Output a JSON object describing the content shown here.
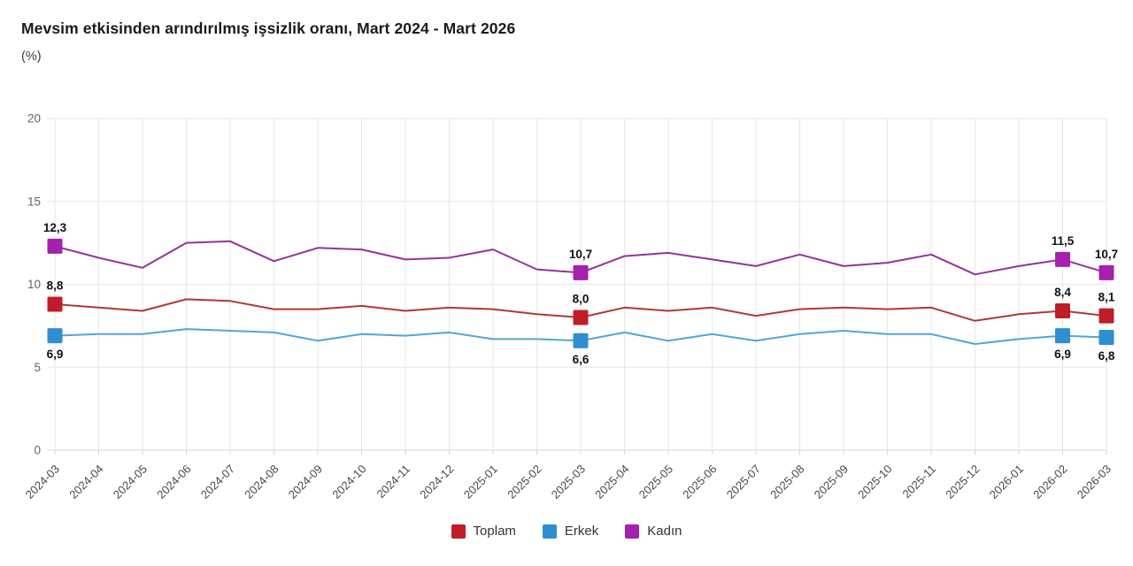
{
  "title": "Mevsim etkisinden arındırılmış işsizlik oranı, Mart 2024 - Mart 2026",
  "subtitle": "(%)",
  "colors": {
    "background": "#ffffff",
    "gridline": "#e7e7e7",
    "axis_line": "#d6d6d6",
    "y_tick_label": "#666666",
    "x_tick_label": "#484848",
    "data_label": "#111111",
    "title": "#1a1a1a",
    "toplam": "#bf1e28",
    "erkek": "#2f8ed0",
    "kadin": "#a521ad"
  },
  "legend": [
    {
      "id": "toplam",
      "label": "Toplam",
      "color": "#bf1e28"
    },
    {
      "id": "erkek",
      "label": "Erkek",
      "color": "#2f8ed0"
    },
    {
      "id": "kadin",
      "label": "Kadın",
      "color": "#a521ad"
    }
  ],
  "chart_data": {
    "type": "line",
    "title": "Mevsim etkisinden arındırılmış işsizlik oranı, Mart 2024 - Mart 2026",
    "ylabel": "(%)",
    "ylim": [
      0,
      20
    ],
    "yticks": [
      0,
      5,
      10,
      15,
      20
    ],
    "grid": true,
    "legend_position": "bottom",
    "x": [
      "2024-03",
      "2024-04",
      "2024-05",
      "2024-06",
      "2024-07",
      "2024-08",
      "2024-09",
      "2024-10",
      "2024-11",
      "2024-12",
      "2025-01",
      "2025-02",
      "2025-03",
      "2025-04",
      "2025-05",
      "2025-06",
      "2025-07",
      "2025-08",
      "2025-09",
      "2025-10",
      "2025-11",
      "2025-12",
      "2026-01",
      "2026-02",
      "2026-03"
    ],
    "series": [
      {
        "name": "Toplam",
        "line_color": "#b13832",
        "marker_color": "#bf1e28",
        "values": [
          8.8,
          8.6,
          8.4,
          9.1,
          9.0,
          8.5,
          8.5,
          8.7,
          8.4,
          8.6,
          8.5,
          8.2,
          8.0,
          8.6,
          8.4,
          8.6,
          8.1,
          8.5,
          8.6,
          8.5,
          8.6,
          7.8,
          8.2,
          8.4,
          8.1
        ],
        "labeled_points": [
          {
            "x": "2024-03",
            "label": "8,8",
            "position": "above"
          },
          {
            "x": "2025-03",
            "label": "8,0",
            "position": "above"
          },
          {
            "x": "2026-02",
            "label": "8,4",
            "position": "above"
          },
          {
            "x": "2026-03",
            "label": "8,1",
            "position": "above"
          }
        ]
      },
      {
        "name": "Erkek",
        "line_color": "#54a4d8",
        "marker_color": "#2f8ed0",
        "values": [
          6.9,
          7.0,
          7.0,
          7.3,
          7.2,
          7.1,
          6.6,
          7.0,
          6.9,
          7.1,
          6.7,
          6.7,
          6.6,
          7.1,
          6.6,
          7.0,
          6.6,
          7.0,
          7.2,
          7.0,
          7.0,
          6.4,
          6.7,
          6.9,
          6.8
        ],
        "labeled_points": [
          {
            "x": "2024-03",
            "label": "6,9",
            "position": "below"
          },
          {
            "x": "2025-03",
            "label": "6,6",
            "position": "below"
          },
          {
            "x": "2026-02",
            "label": "6,9",
            "position": "below"
          },
          {
            "x": "2026-03",
            "label": "6,8",
            "position": "below"
          }
        ]
      },
      {
        "name": "Kadın",
        "line_color": "#97309a",
        "marker_color": "#a521ad",
        "values": [
          12.3,
          11.6,
          11.0,
          12.5,
          12.6,
          11.4,
          12.2,
          12.1,
          11.5,
          11.6,
          12.1,
          10.9,
          10.7,
          11.7,
          11.9,
          11.5,
          11.1,
          11.8,
          11.1,
          11.3,
          11.8,
          10.6,
          11.1,
          11.5,
          10.7
        ],
        "labeled_points": [
          {
            "x": "2024-03",
            "label": "12,3",
            "position": "above"
          },
          {
            "x": "2025-03",
            "label": "10,7",
            "position": "above"
          },
          {
            "x": "2026-02",
            "label": "11,5",
            "position": "above"
          },
          {
            "x": "2026-03",
            "label": "10,7",
            "position": "above"
          }
        ]
      }
    ]
  }
}
